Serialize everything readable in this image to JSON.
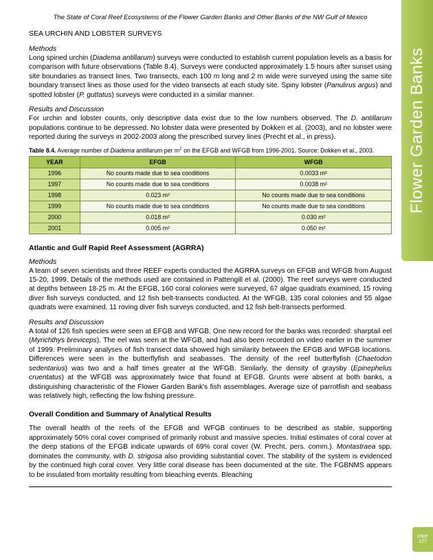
{
  "header": "The State of Coral Reef Ecosystems of the Flower Garden Banks and Other Banks of the NW Gulf of Mexico",
  "sideTab": "Flower Garden Banks",
  "pageLabel": "page",
  "pageNum": "217",
  "sec1": {
    "title": "SEA URCHIN AND LOBSTER SURVEYS",
    "methodsLabel": "Methods",
    "methods1a": "Long spined urchin (",
    "methods1b": "Diadema antillarum",
    "methods1c": ") surveys were conducted to establish current population levels as a basis for comparison with future observations (Table 8.4). Surveys were conducted approximately 1.5 hours after sunset using site boundaries as transect lines. Two transects, each 100 m long and 2 m wide were surveyed using the same site boundary transect lines as those used for the video transects at each study site.  Spiny lobster (",
    "methods1d": "Panulirus argus",
    "methods1e": ") and spotted lobster (",
    "methods1f": "P. guttatus",
    "methods1g": ") surveys were conducted in a similar manner.",
    "resultsLabel": "Results and Discussion",
    "results1a": "For urchin and lobster counts, only descriptive data exist due to the low numbers observed. The ",
    "results1b": "D. antillarum",
    "results1c": " populations continue to be depressed. No lobster data were presented by Dokken et al. (2003), and no lobster were reported during the surveys in 2002-2003 along the prescribed survey lines (Precht et al., in press)."
  },
  "table": {
    "caption1": "Table 8.4.",
    "caption2a": " Average number of ",
    "caption2b": "Diadema antillarum",
    "caption2c": " per m",
    "caption2d": " on the EFGB and WFGB from 1996-2001.  Source: Dokken et al., 2003.",
    "h1": "YEAR",
    "h2": "EFGB",
    "h3": "WFGB",
    "rows": [
      {
        "y": "1996",
        "e": "No counts made due to sea conditions",
        "w": "0.0033 m²"
      },
      {
        "y": "1997",
        "e": "No counts made due to sea conditions",
        "w": "0.0038 m²"
      },
      {
        "y": "1998",
        "e": "0.023 m²",
        "w": "No counts made due to sea conditions"
      },
      {
        "y": "1999",
        "e": "No counts made due to sea conditions",
        "w": "No counts made due to sea conditions"
      },
      {
        "y": "2000",
        "e": "0.018 m²",
        "w": "0.030 m²"
      },
      {
        "y": "2001",
        "e": "0.005 m²",
        "w": "0.050 m²"
      }
    ]
  },
  "sec2": {
    "title": "Atlantic and Gulf Rapid Reef Assessment (AGRRA)",
    "methodsLabel": "Methods",
    "methods": "A team of seven scientists and three REEF experts conducted the AGRRA surveys on EFGB and WFGB from August 15-20, 1999. Details of the methods used are contained in Pattengill et al. (2000). The reef surveys were conducted at depths between 18-25 m. At the EFGB, 160 coral colonies were surveyed, 67 algae quadrats examined, 15 roving diver fish surveys conducted, and 12 fish belt-transects conducted. At the WFGB, 135 coral colonies and 55 algae quadrats were examined, 11 roving diver fish surveys conducted, and 12 fish belt-transects performed.",
    "resultsLabel": "Results and Discussion",
    "r1a": "A total of 126 fish species were seen at EFGB and WFGB. One new record for the banks was recorded: sharptail eel (",
    "r1b": "Myrichthys breviceps",
    "r1c": "). The eel was seen at the WFGB, and had also been recorded on video earlier in the summer of 1999. Preliminary analyses of fish transect data showed high similarity between the EFGB and WFGB locations. Differences were seen in the butterflyfish and seabasses. The density of the reef butterflyfish (",
    "r1d": "Chaetodon sedentarius",
    "r1e": ") was two and a half times greater at the WFGB. Similarly, the density of graysby (",
    "r1f": "Epinephelus cruentatus",
    "r1g": ") at the WFGB was approximately twice that found at EFGB. Grunts were absent at both banks, a distinguishing characteristic of the Flower Garden Bank's fish assemblages. Average size of parrotfish and seabass was relatively high, reflecting the low fishing pressure."
  },
  "sec3": {
    "title": "Overall Condition and Summary of Analytical Results",
    "t1a": "The overall health of the reefs of the EFGB and WFGB continues to be described as stable, supporting approximately 50% coral cover comprised of primarily robust and massive species. Initial estimates of coral cover at the deep stations of the EFGB indicate upwards of 69% coral cover (W. Precht, pers. comm.). ",
    "t1b": "Montastraea",
    "t1c": " spp. dominates the community, with ",
    "t1d": "D. strigosa",
    "t1e": " also providing substantial cover. The stability of the system is evidenced by the continued high coral cover. Very little coral disease has been documented at the site. The FGBNMS appears to be insulated from mortality resulting from bleaching events. Bleaching"
  }
}
